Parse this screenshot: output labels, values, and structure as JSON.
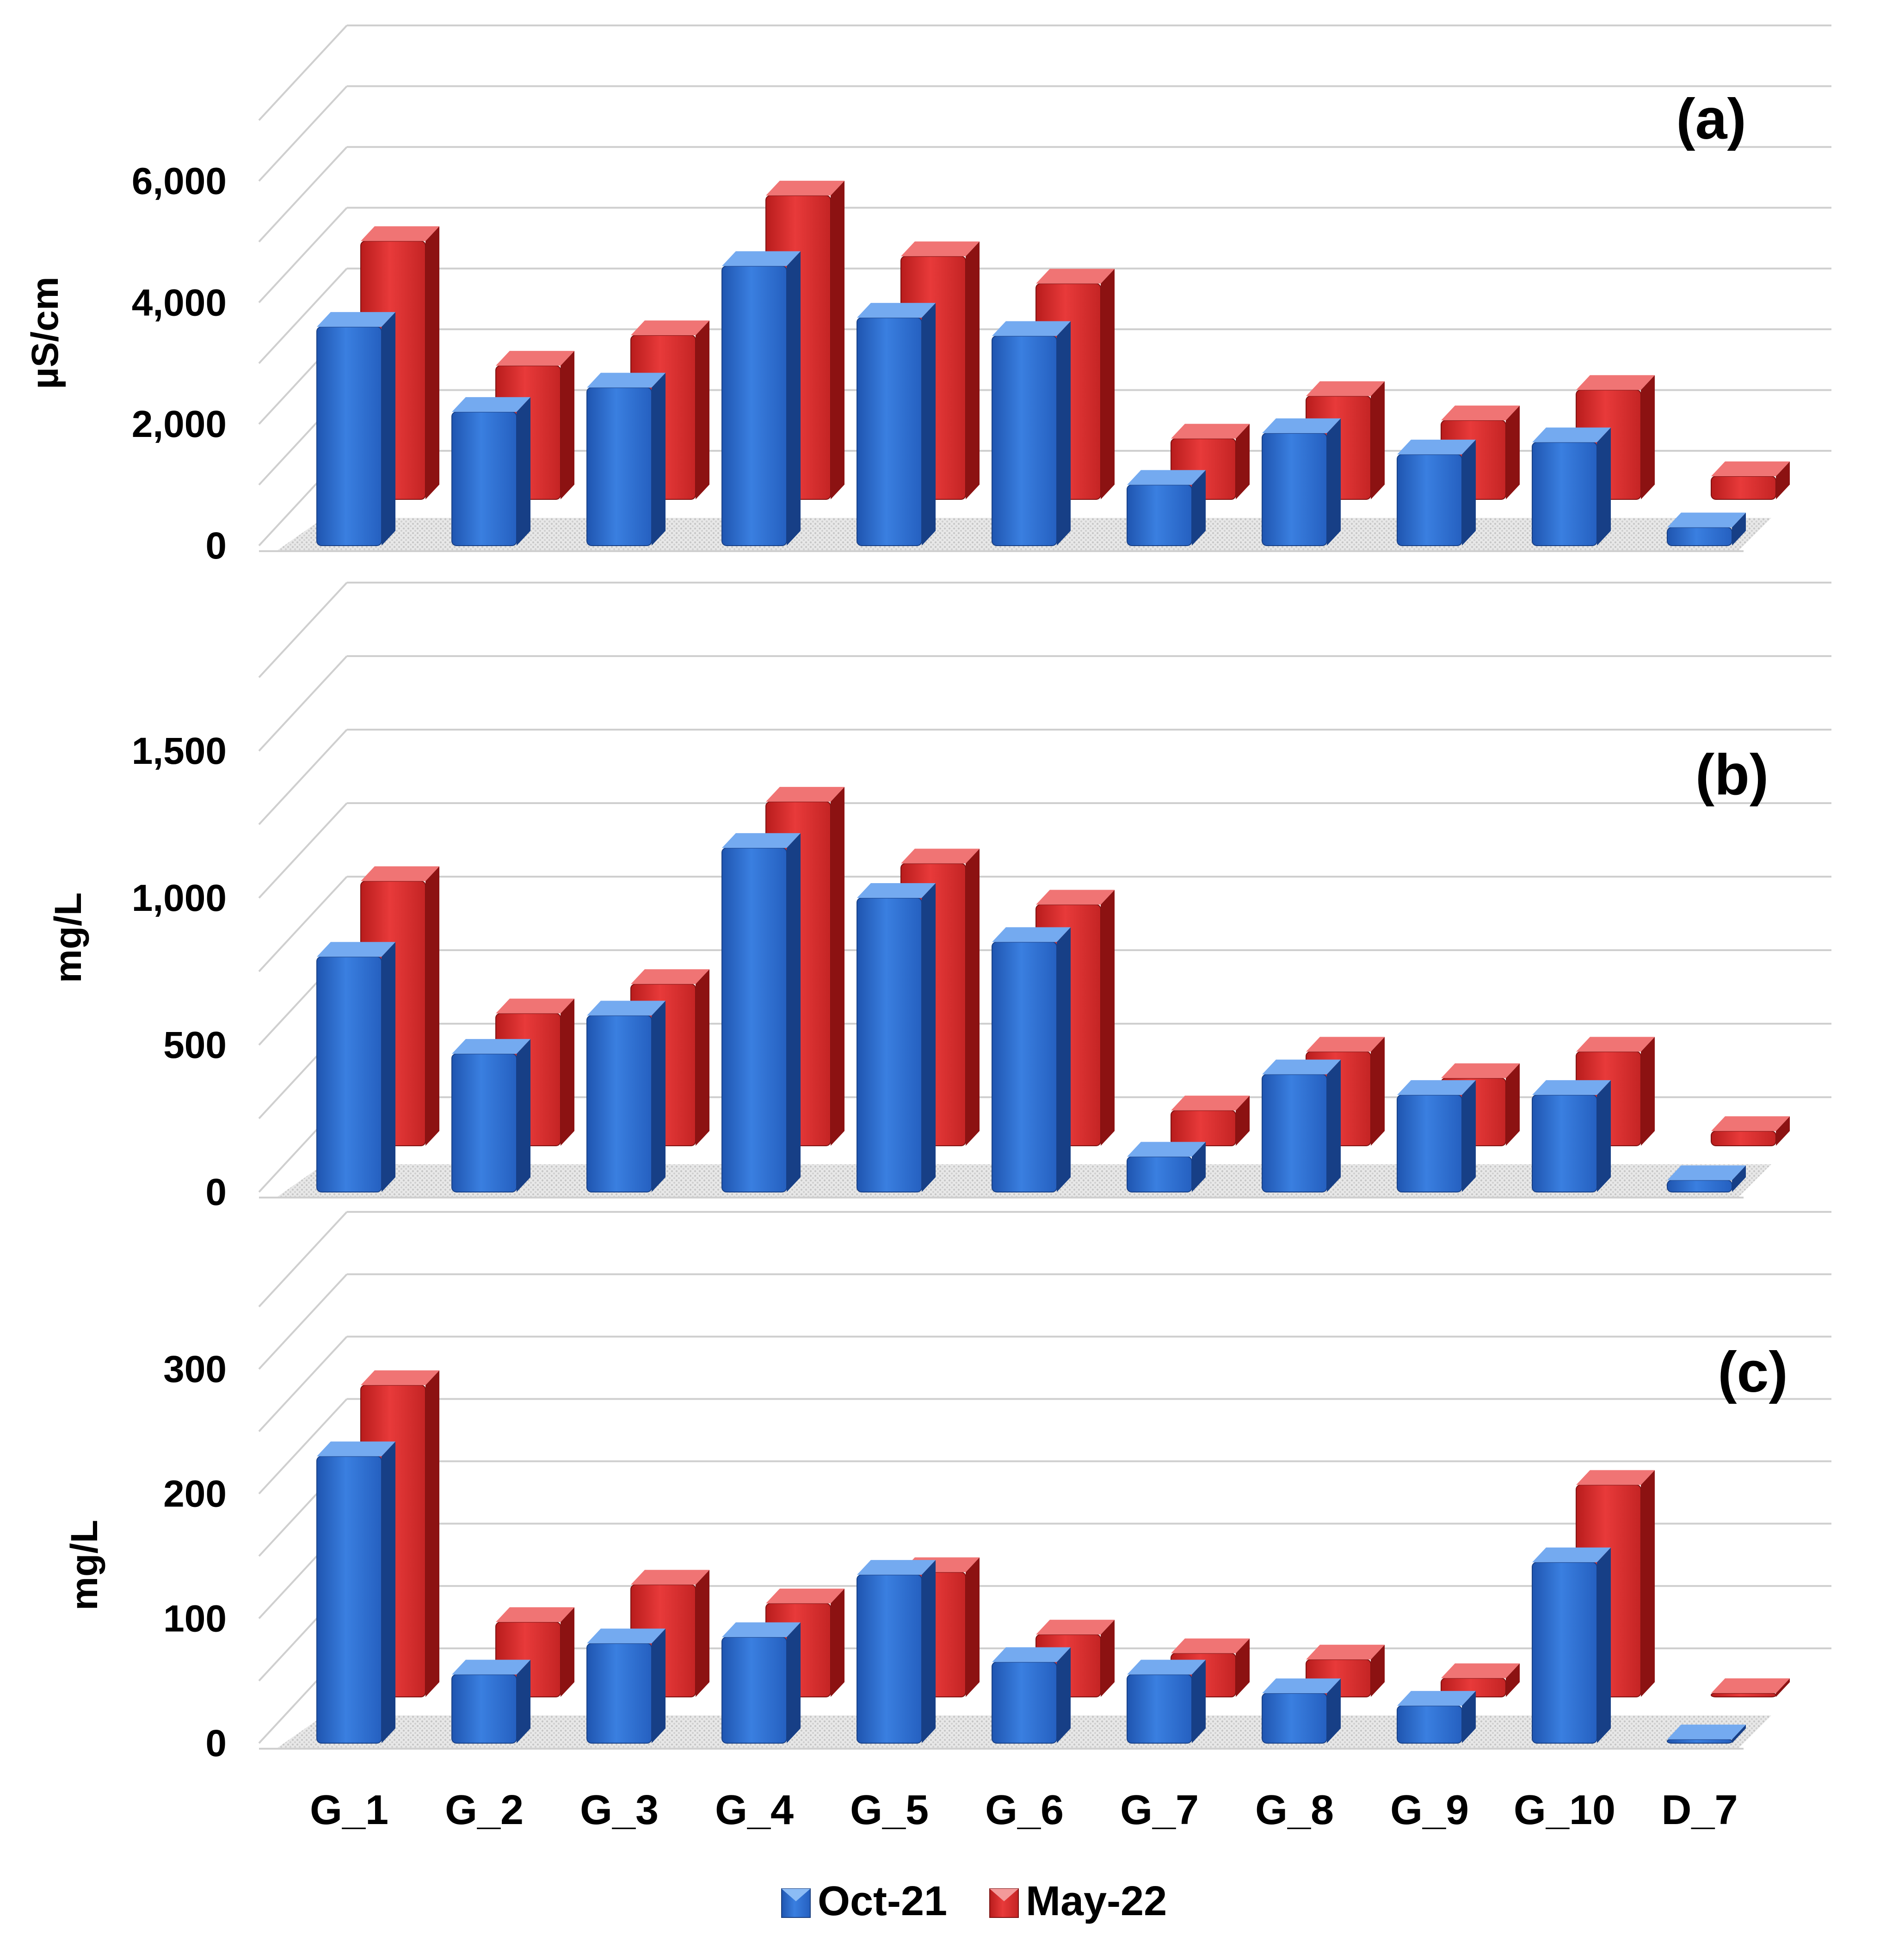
{
  "colors": {
    "oct_front": "#2f6fd0",
    "oct_top": "#74aaf0",
    "oct_side": "#173f86",
    "may_front": "#dd2b2b",
    "may_top": "#f07474",
    "may_side": "#8c1212",
    "grid": "#cfcfcf",
    "floor_shadow": "#d2d2d2"
  },
  "legend": [
    {
      "label": "Oct-21",
      "color": "#2f6fd0"
    },
    {
      "label": "May-22",
      "color": "#dd2b2b"
    }
  ],
  "chart_data": [
    {
      "type": "bar",
      "panel_label": "(a)",
      "ylabel": "µS/cm",
      "ylim": [
        0,
        7000
      ],
      "yticks": [
        0,
        2000,
        4000,
        6000
      ],
      "ytick_labels": [
        "0",
        "2,000",
        "4,000",
        "6,000"
      ],
      "gridlines": [
        0,
        1000,
        2000,
        3000,
        4000,
        5000,
        6000,
        7000
      ],
      "categories": [
        "G_1",
        "G_2",
        "G_3",
        "G_4",
        "G_5",
        "G_6",
        "G_7",
        "G_8",
        "G_9",
        "G_10",
        "D_7"
      ],
      "series": [
        {
          "name": "Oct-21",
          "values": [
            3600,
            2200,
            2600,
            4600,
            3750,
            3450,
            1000,
            1850,
            1500,
            1700,
            300
          ]
        },
        {
          "name": "May-22",
          "values": [
            4250,
            2200,
            2700,
            5000,
            4000,
            3550,
            1000,
            1700,
            1300,
            1800,
            380
          ]
        }
      ]
    },
    {
      "type": "bar",
      "panel_label": "(b)",
      "ylabel": "mg/L",
      "ylim": [
        0,
        1750
      ],
      "yticks": [
        0,
        500,
        1000,
        1500
      ],
      "ytick_labels": [
        "0",
        "500",
        "1,000",
        "1,500"
      ],
      "gridlines": [
        0,
        250,
        500,
        750,
        1000,
        1250,
        1500,
        1750
      ],
      "categories": [
        "G_1",
        "G_2",
        "G_3",
        "G_4",
        "G_5",
        "G_6",
        "G_7",
        "G_8",
        "G_9",
        "G_10",
        "D_7"
      ],
      "series": [
        {
          "name": "Oct-21",
          "values": [
            800,
            470,
            600,
            1170,
            1000,
            850,
            120,
            400,
            330,
            330,
            40
          ]
        },
        {
          "name": "May-22",
          "values": [
            900,
            450,
            550,
            1170,
            960,
            820,
            120,
            320,
            230,
            320,
            50
          ]
        }
      ]
    },
    {
      "type": "bar",
      "panel_label": "(c)",
      "ylabel": "mg/L",
      "ylim": [
        0,
        350
      ],
      "yticks": [
        0,
        100,
        200,
        300
      ],
      "ytick_labels": [
        "0",
        "100",
        "200",
        "300"
      ],
      "gridlines": [
        0,
        50,
        100,
        150,
        200,
        250,
        300,
        350
      ],
      "categories": [
        "G_1",
        "G_2",
        "G_3",
        "G_4",
        "G_5",
        "G_6",
        "G_7",
        "G_8",
        "G_9",
        "G_10",
        "D_7"
      ],
      "series": [
        {
          "name": "Oct-21",
          "values": [
            230,
            55,
            80,
            85,
            135,
            65,
            55,
            40,
            30,
            145,
            3
          ]
        },
        {
          "name": "May-22",
          "values": [
            250,
            60,
            90,
            75,
            100,
            50,
            35,
            30,
            15,
            170,
            3
          ]
        }
      ]
    }
  ]
}
